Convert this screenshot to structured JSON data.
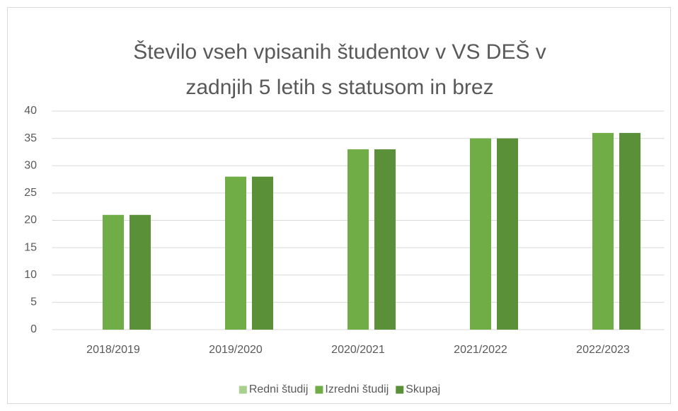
{
  "chart_data": {
    "type": "bar",
    "title": [
      "Število vseh vpisanih študentov v VS DEŠ v",
      "zadnjih 5 letih s statusom in brez"
    ],
    "categories": [
      "2018/2019",
      "2019/2020",
      "2020/2021",
      "2021/2022",
      "2022/2023"
    ],
    "series": [
      {
        "name": "Redni študij",
        "color": "#a9d18e",
        "values": [
          0,
          0,
          0,
          0,
          0
        ]
      },
      {
        "name": "Izredni študij",
        "color": "#70ad47",
        "values": [
          21,
          28,
          33,
          35,
          36
        ]
      },
      {
        "name": "Skupaj",
        "color": "#5a9038",
        "values": [
          21,
          28,
          33,
          35,
          36
        ]
      }
    ],
    "ylim": [
      0,
      40
    ],
    "yticks": [
      0,
      5,
      10,
      15,
      20,
      25,
      30,
      35,
      40
    ],
    "grid": true,
    "legend": "bottom"
  }
}
